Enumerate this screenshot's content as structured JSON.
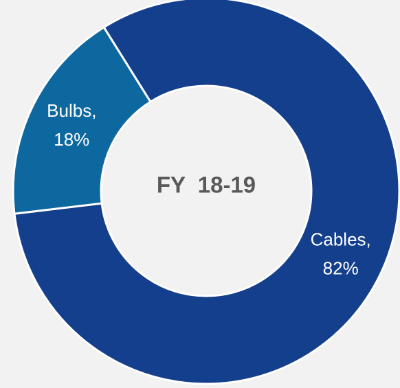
{
  "chart_data": {
    "type": "donut",
    "title": "FY  18-19",
    "categories": [
      "Cables,",
      "Bulbs,"
    ],
    "values": [
      82,
      18
    ],
    "value_labels": [
      "82%",
      "18%"
    ],
    "colors": [
      "#143f8c",
      "#0e68a0"
    ]
  }
}
